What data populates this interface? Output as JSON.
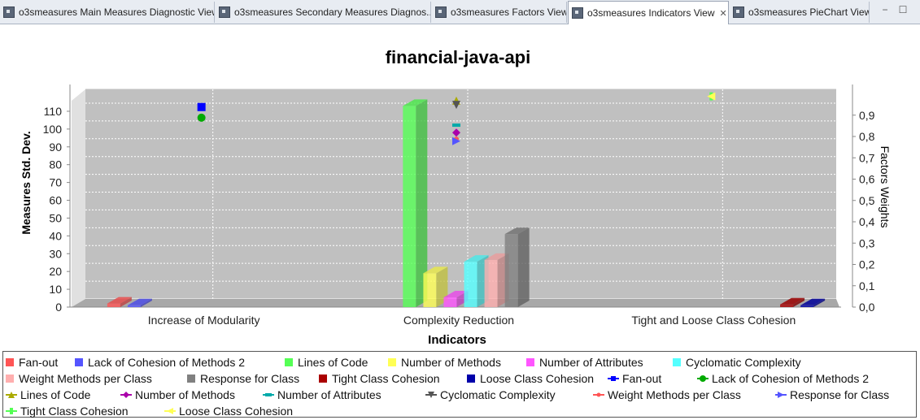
{
  "tabs": [
    {
      "label": "o3smeasures Main Measures Diagnostic View",
      "active": false
    },
    {
      "label": "o3smeasures Secondary Measures Diagnos...",
      "active": false
    },
    {
      "label": "o3smeasures Factors View",
      "active": false
    },
    {
      "label": "o3smeasures Indicators View",
      "active": true
    },
    {
      "label": "o3smeasures PieChart View",
      "active": false
    }
  ],
  "chart_data": {
    "type": "bar",
    "title": "financial-java-api",
    "xlabel": "Indicators",
    "ylabel": "Measures Std. Dev.",
    "y2label": "Factors Weights",
    "ylim": [
      0,
      115
    ],
    "y2lim": [
      0,
      0.96
    ],
    "yticks": [
      "0",
      "10",
      "20",
      "30",
      "40",
      "50",
      "60",
      "70",
      "80",
      "90",
      "100",
      "110"
    ],
    "y2ticks": [
      "0,0",
      "0,1",
      "0,2",
      "0,3",
      "0,4",
      "0,5",
      "0,6",
      "0,7",
      "0,8",
      "0,9"
    ],
    "categories": [
      "Increase of Modularity",
      "Complexity Reduction",
      "Tight and Loose Class Cohesion"
    ],
    "grid": true,
    "legend_position": "bottom",
    "bar_series": [
      {
        "name": "Fan-out",
        "color": "#ff5555",
        "values": [
          2,
          null,
          null
        ]
      },
      {
        "name": "Lack of Cohesion of Methods 2",
        "color": "#5555ff",
        "values": [
          1,
          null,
          null
        ]
      },
      {
        "name": "Lines of Code",
        "color": "#55ff55",
        "values": [
          null,
          113,
          null
        ]
      },
      {
        "name": "Number of Methods",
        "color": "#ffff55",
        "values": [
          null,
          19,
          null
        ]
      },
      {
        "name": "Number of Attributes",
        "color": "#ff55ff",
        "values": [
          null,
          5.5,
          null
        ]
      },
      {
        "name": "Cyclomatic Complexity",
        "color": "#55ffff",
        "values": [
          null,
          25.5,
          null
        ]
      },
      {
        "name": "Weight Methods per Class",
        "color": "#ffafaf",
        "values": [
          null,
          26.5,
          null
        ]
      },
      {
        "name": "Response for Class",
        "color": "#808080",
        "values": [
          null,
          41,
          null
        ]
      },
      {
        "name": "Tight Class Cohesion",
        "color": "#aa0000",
        "values": [
          null,
          null,
          1.5
        ]
      },
      {
        "name": "Loose Class Cohesion",
        "color": "#0000aa",
        "values": [
          null,
          null,
          1
        ]
      }
    ],
    "line_series": [
      {
        "name": "Fan-out",
        "color": "#0000ff",
        "shape": "square",
        "values": [
          0.9,
          null,
          null
        ]
      },
      {
        "name": "Lack of Cohesion of Methods 2",
        "color": "#00aa00",
        "shape": "circle",
        "values": [
          0.85,
          null,
          null
        ]
      },
      {
        "name": "Lines of Code",
        "color": "#aaaa00",
        "shape": "triangle-up",
        "values": [
          null,
          0.93,
          null
        ]
      },
      {
        "name": "Number of Methods",
        "color": "#aa00aa",
        "shape": "diamond",
        "values": [
          null,
          0.78,
          null
        ]
      },
      {
        "name": "Number of Attributes",
        "color": "#00aaaa",
        "shape": "rect-h",
        "values": [
          null,
          0.815,
          null
        ]
      },
      {
        "name": "Cyclomatic Complexity",
        "color": "#555555",
        "shape": "triangle-down",
        "values": [
          null,
          0.91,
          null
        ]
      },
      {
        "name": "Weight Methods per Class",
        "color": "#ff5555",
        "shape": "circle-s",
        "values": [
          null,
          0.75,
          null
        ]
      },
      {
        "name": "Response for Class",
        "color": "#5555ff",
        "shape": "triangle-right",
        "values": [
          null,
          0.74,
          null
        ]
      },
      {
        "name": "Tight Class Cohesion",
        "color": "#55ff55",
        "shape": "rect-v",
        "values": [
          null,
          null,
          0.95
        ]
      },
      {
        "name": "Loose Class Cohesion",
        "color": "#ffff55",
        "shape": "triangle-left",
        "values": [
          null,
          null,
          0.95
        ]
      }
    ]
  }
}
